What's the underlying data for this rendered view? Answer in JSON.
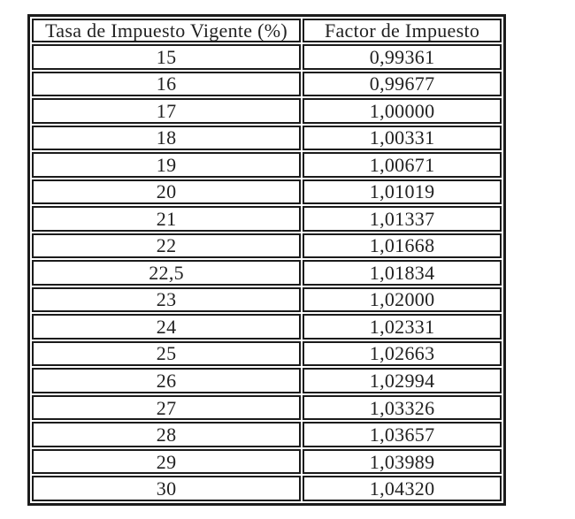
{
  "page": {
    "background_color": "#ffffff",
    "border_color": "#1b1b1b",
    "text_color": "#222222"
  },
  "table": {
    "headers": [
      "Tasa de Impuesto Vigente (%)",
      "Factor de Impuesto"
    ],
    "rows": [
      [
        "15",
        "0,99361"
      ],
      [
        "16",
        "0,99677"
      ],
      [
        "17",
        "1,00000"
      ],
      [
        "18",
        "1,00331"
      ],
      [
        "19",
        "1,00671"
      ],
      [
        "20",
        "1,01019"
      ],
      [
        "21",
        "1,01337"
      ],
      [
        "22",
        "1,01668"
      ],
      [
        "22,5",
        "1,01834"
      ],
      [
        "23",
        "1,02000"
      ],
      [
        "24",
        "1,02331"
      ],
      [
        "25",
        "1,02663"
      ],
      [
        "26",
        "1,02994"
      ],
      [
        "27",
        "1,03326"
      ],
      [
        "28",
        "1,03657"
      ],
      [
        "29",
        "1,03989"
      ],
      [
        "30",
        "1,04320"
      ]
    ]
  }
}
